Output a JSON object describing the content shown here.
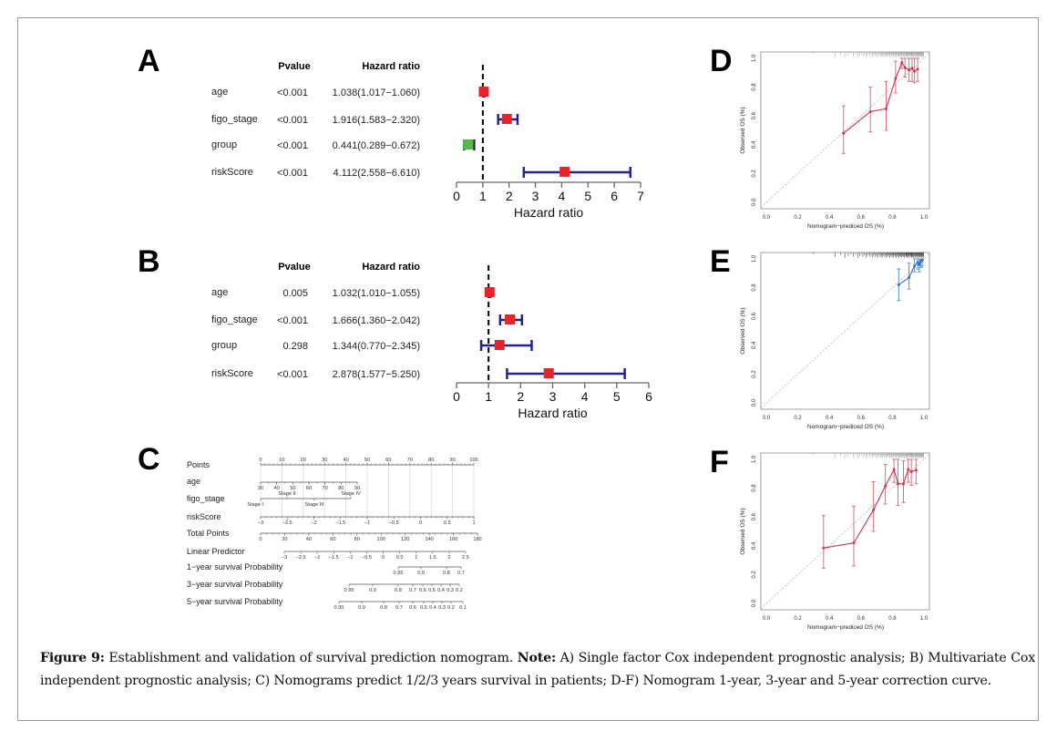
{
  "caption": {
    "figure_label": "Figure 9:",
    "text1": " Establishment and validation of survival prediction nomogram. ",
    "note_label": "Note:",
    "text2": " A) Single factor Cox independent prognostic analysis; B) Multivariate Cox independent prognostic analysis; C) Nomograms predict 1/2/3 years survival in patients; D-F) Nomogram 1-year, 3-year and 5-year correction curve."
  },
  "colors": {
    "marker_red": "#e8242a",
    "marker_green": "#58b947",
    "error_bar_navy": "#23238c",
    "calib_red": "#c9354d",
    "calib_red_bar": "#d9707f",
    "calib_blue": "#2e6fc0",
    "calib_blue_bar": "#5b93d4"
  },
  "chart_data": [
    {
      "type": "forest",
      "panel": "A",
      "headers": {
        "pvalue": "Pvalue",
        "hazard_ratio": "Hazard ratio"
      },
      "xlabel": "Hazard ratio",
      "xlim": [
        0,
        7
      ],
      "xticks": [
        "0",
        "1",
        "2",
        "3",
        "4",
        "5",
        "6",
        "7"
      ],
      "reference_line": 1,
      "rows": [
        {
          "name": "age",
          "pvalue": "<0.001",
          "hr_text": "1.038(1.017−1.060)",
          "hr": 1.038,
          "lo": 1.017,
          "hi": 1.06,
          "color": "#e8242a"
        },
        {
          "name": "figo_stage",
          "pvalue": "<0.001",
          "hr_text": "1.916(1.583−2.320)",
          "hr": 1.916,
          "lo": 1.583,
          "hi": 2.32,
          "color": "#e8242a"
        },
        {
          "name": "group",
          "pvalue": "<0.001",
          "hr_text": "0.441(0.289−0.672)",
          "hr": 0.441,
          "lo": 0.289,
          "hi": 0.672,
          "color": "#58b947"
        },
        {
          "name": "riskScore",
          "pvalue": "<0.001",
          "hr_text": "4.112(2.558−6.610)",
          "hr": 4.112,
          "lo": 2.558,
          "hi": 6.61,
          "color": "#e8242a"
        }
      ]
    },
    {
      "type": "forest",
      "panel": "B",
      "headers": {
        "pvalue": "Pvalue",
        "hazard_ratio": "Hazard ratio"
      },
      "xlabel": "Hazard ratio",
      "xlim": [
        0,
        6
      ],
      "xticks": [
        "0",
        "1",
        "2",
        "3",
        "4",
        "5",
        "6"
      ],
      "reference_line": 1,
      "rows": [
        {
          "name": "age",
          "pvalue": "0.005",
          "hr_text": "1.032(1.010−1.055)",
          "hr": 1.032,
          "lo": 1.01,
          "hi": 1.055,
          "color": "#e8242a"
        },
        {
          "name": "figo_stage",
          "pvalue": "<0.001",
          "hr_text": "1.666(1.360−2.042)",
          "hr": 1.666,
          "lo": 1.36,
          "hi": 2.042,
          "color": "#e8242a"
        },
        {
          "name": "group",
          "pvalue": "0.298",
          "hr_text": "1.344(0.770−2.345)",
          "hr": 1.344,
          "lo": 0.77,
          "hi": 2.345,
          "color": "#e8242a"
        },
        {
          "name": "riskScore",
          "pvalue": "<0.001",
          "hr_text": "2.878(1.577−5.250)",
          "hr": 2.878,
          "lo": 1.577,
          "hi": 5.25,
          "color": "#e8242a"
        }
      ]
    },
    {
      "type": "nomogram",
      "panel": "C",
      "rows": [
        {
          "label": "Points",
          "ticks": [
            "0",
            "10",
            "20",
            "30",
            "40",
            "50",
            "60",
            "70",
            "80",
            "90",
            "100"
          ]
        },
        {
          "label": "age",
          "ticks": [
            "30",
            "40",
            "50",
            "60",
            "70",
            "80",
            "90"
          ]
        },
        {
          "label": "figo_stage",
          "ticks": [
            "Stage I",
            "Stage II",
            "Stage III",
            "Stage IV"
          ]
        },
        {
          "label": "riskScore",
          "ticks": [
            "−3",
            "−2.5",
            "−2",
            "−1.5",
            "−1",
            "−0.5",
            "0",
            "0.5",
            "1"
          ]
        },
        {
          "label": "Total Points",
          "ticks": [
            "0",
            "20",
            "40",
            "60",
            "80",
            "100",
            "120",
            "140",
            "160",
            "180"
          ]
        },
        {
          "label": "Linear Predictor",
          "ticks": [
            "−3",
            "−2.5",
            "−2",
            "−1.5",
            "−1",
            "−0.5",
            "0",
            "0.5",
            "1",
            "1.5",
            "2",
            "2.5"
          ]
        },
        {
          "label": "1−year survival Probability",
          "ticks": [
            "0.95",
            "0.9",
            "0.8",
            "0.7"
          ]
        },
        {
          "label": "3−year survival Probability",
          "ticks": [
            "0.95",
            "0.9",
            "0.8",
            "0.7",
            "0.6",
            "0.5",
            "0.4",
            "0.3",
            "0.2"
          ]
        },
        {
          "label": "5−year survival Probability",
          "ticks": [
            "0.95",
            "0.9",
            "0.8",
            "0.7",
            "0.6",
            "0.5",
            "0.4",
            "0.3",
            "0.2",
            "0.1"
          ]
        }
      ]
    },
    {
      "type": "line",
      "panel": "D",
      "xlabel": "Nomogram−prediced OS (%)",
      "ylabel": "Observed OS (%)",
      "xlim": [
        0,
        1
      ],
      "ylim": [
        0,
        1
      ],
      "ticks": [
        "0.0",
        "0.2",
        "0.4",
        "0.6",
        "0.8",
        "1.0"
      ],
      "reference": "diagonal",
      "color": "#c9354d",
      "points": [
        {
          "x": 0.49,
          "y": 0.48,
          "lo": 0.34,
          "hi": 0.67
        },
        {
          "x": 0.66,
          "y": 0.63,
          "lo": 0.49,
          "hi": 0.8
        },
        {
          "x": 0.76,
          "y": 0.65,
          "lo": 0.5,
          "hi": 0.84
        },
        {
          "x": 0.82,
          "y": 0.86,
          "lo": 0.76,
          "hi": 0.98
        },
        {
          "x": 0.86,
          "y": 0.97,
          "lo": 0.93,
          "hi": 1.0
        },
        {
          "x": 0.88,
          "y": 0.935,
          "lo": 0.87,
          "hi": 1.0
        },
        {
          "x": 0.905,
          "y": 0.92,
          "lo": 0.84,
          "hi": 1.0
        },
        {
          "x": 0.925,
          "y": 0.932,
          "lo": 0.84,
          "hi": 1.0
        },
        {
          "x": 0.94,
          "y": 0.91,
          "lo": 0.83,
          "hi": 1.0
        },
        {
          "x": 0.96,
          "y": 0.925,
          "lo": 0.84,
          "hi": 1.0
        }
      ]
    },
    {
      "type": "line",
      "panel": "E",
      "xlabel": "Nomogram−prediced OS (%)",
      "ylabel": "Observed OS (%)",
      "xlim": [
        0,
        1
      ],
      "ylim": [
        0,
        1
      ],
      "ticks": [
        "0.0",
        "0.2",
        "0.4",
        "0.6",
        "0.8",
        "1.0"
      ],
      "reference": "diagonal",
      "color": "#2e6fc0",
      "points": [
        {
          "x": 0.84,
          "y": 0.82,
          "lo": 0.71,
          "hi": 0.93
        },
        {
          "x": 0.905,
          "y": 0.87,
          "lo": 0.79,
          "hi": 0.97
        },
        {
          "x": 0.94,
          "y": 0.95,
          "lo": 0.91,
          "hi": 1.0
        },
        {
          "x": 0.96,
          "y": 0.975,
          "lo": 0.93,
          "hi": 1.0
        },
        {
          "x": 0.97,
          "y": 0.96,
          "lo": 0.91,
          "hi": 1.0
        },
        {
          "x": 0.98,
          "y": 0.985,
          "lo": 0.94,
          "hi": 1.0
        },
        {
          "x": 0.99,
          "y": 0.99,
          "lo": 0.95,
          "hi": 1.0
        }
      ]
    },
    {
      "type": "line",
      "panel": "F",
      "xlabel": "Nomogram−prediced OS (%)",
      "ylabel": "Observed OS (%)",
      "xlim": [
        0,
        1
      ],
      "ylim": [
        0,
        1
      ],
      "ticks": [
        "0.0",
        "0.2",
        "0.4",
        "0.6",
        "0.8",
        "1.0"
      ],
      "reference": "diagonal",
      "color": "#c9354d",
      "points": [
        {
          "x": 0.363,
          "y": 0.385,
          "lo": 0.245,
          "hi": 0.61
        },
        {
          "x": 0.555,
          "y": 0.42,
          "lo": 0.26,
          "hi": 0.675
        },
        {
          "x": 0.68,
          "y": 0.65,
          "lo": 0.5,
          "hi": 0.845
        },
        {
          "x": 0.755,
          "y": 0.815,
          "lo": 0.69,
          "hi": 0.965
        },
        {
          "x": 0.81,
          "y": 0.93,
          "lo": 0.84,
          "hi": 1.0
        },
        {
          "x": 0.835,
          "y": 0.83,
          "lo": 0.68,
          "hi": 1.0
        },
        {
          "x": 0.87,
          "y": 0.83,
          "lo": 0.7,
          "hi": 0.99
        },
        {
          "x": 0.9,
          "y": 0.93,
          "lo": 0.84,
          "hi": 1.0
        },
        {
          "x": 0.92,
          "y": 0.915,
          "lo": 0.82,
          "hi": 1.0
        },
        {
          "x": 0.95,
          "y": 0.925,
          "lo": 0.83,
          "hi": 1.0
        }
      ]
    }
  ]
}
